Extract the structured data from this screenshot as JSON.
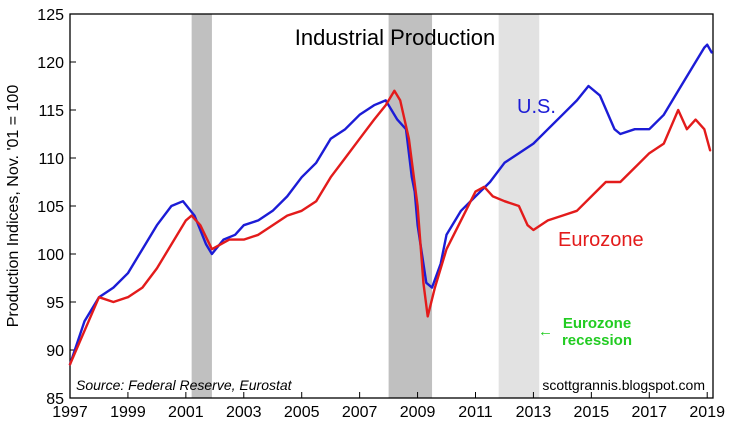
{
  "chart_data": {
    "type": "line",
    "title": "Industrial Production",
    "ylabel": "Production Indices, Nov. '01 = 100",
    "xlabel": "",
    "xlim": [
      1997,
      2019.2
    ],
    "ylim": [
      85,
      125
    ],
    "x_ticks": [
      "1997",
      "1999",
      "2001",
      "2003",
      "2005",
      "2007",
      "2009",
      "2011",
      "2013",
      "2015",
      "2017",
      "2019"
    ],
    "y_ticks": [
      "85",
      "90",
      "95",
      "100",
      "105",
      "110",
      "115",
      "120",
      "125"
    ],
    "grid": false,
    "recessions": [
      {
        "start": 2001.2,
        "end": 2001.9,
        "color": "#c0c0c0"
      },
      {
        "start": 2008.0,
        "end": 2009.5,
        "color": "#c0c0c0"
      },
      {
        "start": 2011.8,
        "end": 2013.2,
        "color": "#e2e2e2"
      }
    ],
    "series": [
      {
        "name": "U.S.",
        "color": "#1c1cd6",
        "x": [
          1997.0,
          1997.5,
          1998.0,
          1998.5,
          1999.0,
          1999.5,
          2000.0,
          2000.5,
          2000.9,
          2001.3,
          2001.7,
          2001.9,
          2002.3,
          2002.7,
          2003.0,
          2003.5,
          2004.0,
          2004.5,
          2005.0,
          2005.5,
          2005.8,
          2006.0,
          2006.5,
          2007.0,
          2007.5,
          2007.9,
          2008.3,
          2008.6,
          2008.8,
          2008.9,
          2009.0,
          2009.3,
          2009.5,
          2009.8,
          2010.0,
          2010.5,
          2011.0,
          2011.5,
          2012.0,
          2012.5,
          2013.0,
          2013.5,
          2014.0,
          2014.5,
          2014.9,
          2015.3,
          2015.8,
          2016.0,
          2016.5,
          2017.0,
          2017.5,
          2018.0,
          2018.5,
          2018.9,
          2019.0,
          2019.15
        ],
        "values": [
          88.5,
          93.0,
          95.5,
          96.5,
          98.0,
          100.5,
          103.0,
          105.0,
          105.5,
          104.0,
          101.0,
          100.0,
          101.5,
          102.0,
          103.0,
          103.5,
          104.5,
          106.0,
          108.0,
          109.5,
          111.0,
          112.0,
          113.0,
          114.5,
          115.5,
          116.0,
          114.0,
          113.0,
          108.0,
          106.5,
          103.0,
          97.0,
          96.5,
          99.0,
          102.0,
          104.5,
          106.0,
          107.5,
          109.5,
          110.5,
          111.5,
          113.0,
          114.5,
          116.0,
          117.5,
          116.5,
          113.0,
          112.5,
          113.0,
          113.0,
          114.5,
          117.0,
          119.5,
          121.5,
          121.8,
          121.0
        ]
      },
      {
        "name": "Eurozone",
        "color": "#e31b1b",
        "x": [
          1997.0,
          1997.5,
          1998.0,
          1998.5,
          1999.0,
          1999.5,
          2000.0,
          2000.5,
          2001.0,
          2001.2,
          2001.5,
          2001.9,
          2002.5,
          2003.0,
          2003.5,
          2004.0,
          2004.5,
          2005.0,
          2005.5,
          2006.0,
          2006.5,
          2007.0,
          2007.5,
          2007.9,
          2008.2,
          2008.4,
          2008.7,
          2009.0,
          2009.2,
          2009.35,
          2009.6,
          2010.0,
          2010.5,
          2011.0,
          2011.3,
          2011.6,
          2012.0,
          2012.5,
          2012.8,
          2013.0,
          2013.5,
          2014.0,
          2014.5,
          2015.0,
          2015.5,
          2016.0,
          2016.5,
          2017.0,
          2017.5,
          2018.0,
          2018.3,
          2018.6,
          2018.9,
          2019.1
        ],
        "values": [
          88.5,
          92.0,
          95.5,
          95.0,
          95.5,
          96.5,
          98.5,
          101.0,
          103.5,
          104.0,
          103.0,
          100.5,
          101.5,
          101.5,
          102.0,
          103.0,
          104.0,
          104.5,
          105.5,
          108.0,
          110.0,
          112.0,
          114.0,
          115.5,
          117.0,
          116.0,
          112.0,
          105.0,
          97.0,
          93.5,
          96.5,
          100.5,
          103.5,
          106.5,
          107.0,
          106.0,
          105.5,
          105.0,
          103.0,
          102.5,
          103.5,
          104.0,
          104.5,
          106.0,
          107.5,
          107.5,
          109.0,
          110.5,
          111.5,
          115.0,
          113.0,
          114.0,
          113.0,
          110.8
        ]
      }
    ],
    "annotations": {
      "us_label": "U.S.",
      "ez_label": "Eurozone",
      "recession_line1": "Eurozone",
      "recession_line2": "recession",
      "recession_arrow": "←",
      "source": "Source: Federal Reserve, Eurostat",
      "site": "scottgrannis.blogspot.com"
    },
    "label_colors": {
      "us": "#1c1cd6",
      "ez": "#e31b1b",
      "recession": "#22cc22"
    }
  }
}
